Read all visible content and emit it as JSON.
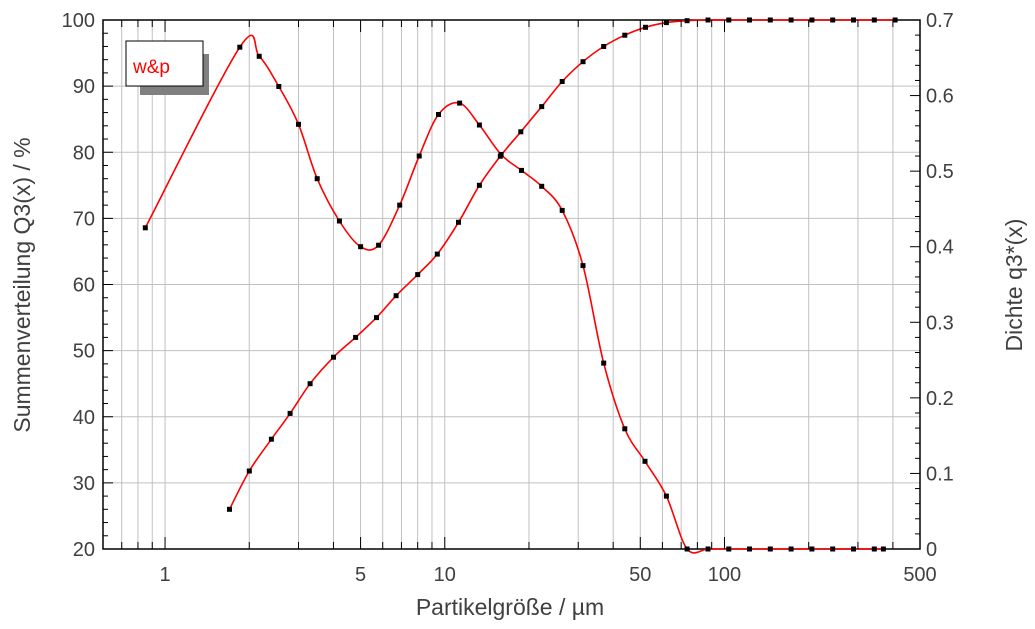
{
  "chart_data": {
    "type": "line",
    "legend_label": "w&p",
    "legend_placement": "top-left",
    "grid": true,
    "x_axis": {
      "label": "Partikelgröße / µm",
      "scale": "log",
      "range": [
        0.6,
        500
      ],
      "ticks": [
        1,
        5,
        10,
        50,
        100,
        500
      ],
      "tick_labels": [
        "1",
        "5",
        "10",
        "50",
        "100",
        "500"
      ]
    },
    "y_left": {
      "label": "Summenverteilung Q3(x) / %",
      "range": [
        20,
        100
      ],
      "ticks": [
        20,
        30,
        40,
        50,
        60,
        70,
        80,
        90,
        100
      ],
      "tick_labels": [
        "20",
        "30",
        "40",
        "50",
        "60",
        "70",
        "80",
        "90",
        "100"
      ]
    },
    "y_right": {
      "label": "Dichte q3*(x)",
      "range": [
        0,
        0.7
      ],
      "ticks": [
        0,
        0.1,
        0.2,
        0.3,
        0.4,
        0.5,
        0.6,
        0.7
      ],
      "tick_labels": [
        "0",
        "0.1",
        "0.2",
        "0.3",
        "0.4",
        "0.5",
        "0.6",
        "0.7"
      ]
    },
    "colors": {
      "line": "#ff0000",
      "marker": "#000000",
      "grid": "#c0c0c0"
    },
    "series": [
      {
        "axis": "left",
        "x": [
          1.7,
          2.0,
          2.4,
          2.8,
          3.3,
          4.0,
          4.8,
          5.7,
          6.7,
          8.0,
          9.4,
          11.2,
          13.3,
          15.8,
          18.7,
          22.2,
          26.3,
          31.2,
          37.0,
          44.0,
          52.2,
          62.0,
          73.5,
          87.3,
          103.6,
          122.9,
          145.8,
          173.0,
          205.4,
          243.7,
          289.2,
          343.2,
          407.4
        ],
        "y": [
          26.0,
          31.8,
          36.6,
          40.5,
          45.0,
          49.0,
          52.0,
          55.0,
          58.3,
          61.5,
          64.6,
          69.4,
          75.0,
          79.4,
          83.1,
          86.9,
          90.7,
          93.7,
          96.0,
          97.7,
          98.9,
          99.6,
          99.9,
          100.0,
          100.0,
          100.0,
          100.0,
          100.0,
          100.0,
          100.0,
          100.0,
          100.0,
          100.0
        ]
      },
      {
        "axis": "right",
        "x": [
          0.85,
          1.85,
          2.17,
          2.55,
          3.0,
          3.5,
          4.2,
          5.0,
          5.8,
          6.9,
          8.1,
          9.5,
          11.3,
          13.3,
          15.9,
          18.8,
          22.2,
          26.3,
          31.2,
          37.0,
          44.0,
          52.0,
          62.0,
          73.5,
          87.3,
          103.6,
          122.9,
          145.8,
          173.0,
          205.4,
          243.7,
          289.2,
          343.2,
          370.0
        ],
        "y": [
          0.425,
          0.664,
          0.652,
          0.612,
          0.562,
          0.49,
          0.434,
          0.4,
          0.402,
          0.455,
          0.52,
          0.575,
          0.59,
          0.561,
          0.522,
          0.501,
          0.48,
          0.448,
          0.375,
          0.246,
          0.159,
          0.116,
          0.07,
          0.0,
          0.0,
          0.0,
          0.0,
          0.0,
          0.0,
          0.0,
          0.0,
          0.0,
          0.0,
          0.0
        ]
      }
    ]
  }
}
